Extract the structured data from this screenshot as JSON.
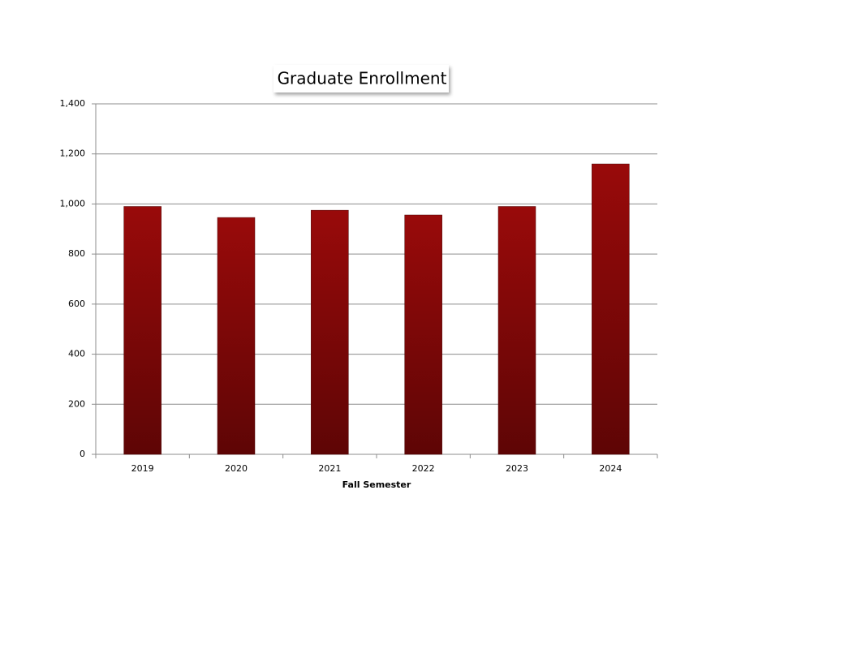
{
  "chart_data": {
    "type": "bar",
    "title": "Graduate Enrollment",
    "x_label": "Fall Semester",
    "categories": [
      "2019",
      "2020",
      "2021",
      "2022",
      "2023",
      "2024"
    ],
    "values": [
      990,
      946,
      975,
      956,
      990,
      1160
    ],
    "color": "#8b0000",
    "ylim": [
      0,
      1400
    ],
    "yticks": [
      0,
      200,
      400,
      600,
      800,
      {
        "value": 1000,
        "label": "1,000"
      },
      {
        "value": 1200,
        "label": "1,200"
      },
      {
        "value": 1400,
        "label": "1,400"
      }
    ],
    "grid": true
  }
}
